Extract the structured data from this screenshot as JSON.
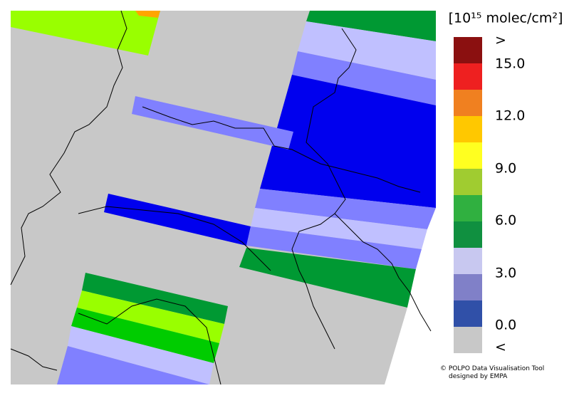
{
  "legend": {
    "title": "[10¹⁵ molec/cm²]",
    "labels": [
      ">",
      "15.0",
      "12.0",
      "9.0",
      "6.0",
      "3.0",
      "0.0",
      "<"
    ]
  },
  "credits": [
    "© POLPO Data Visualisation Tool",
    "designed by EMPA"
  ]
}
